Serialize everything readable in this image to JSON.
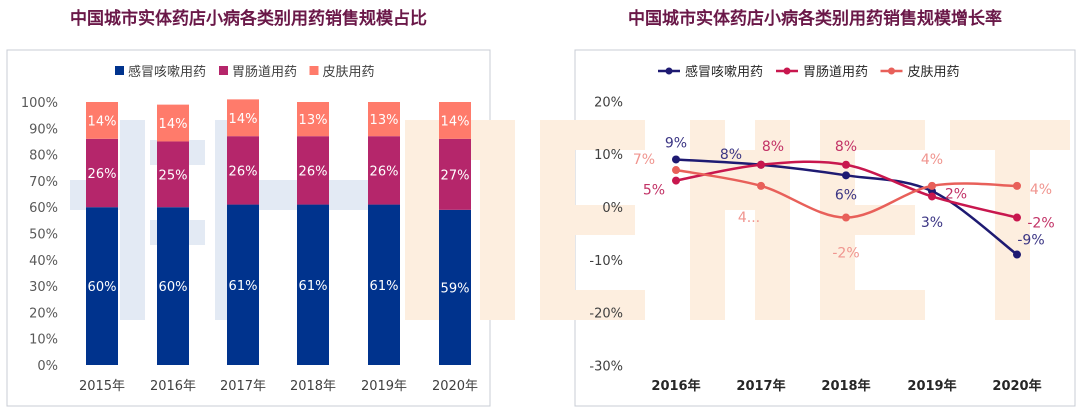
{
  "watermark": "米内MENET",
  "chart_data": [
    {
      "type": "bar",
      "stacked": true,
      "title": "中国城市实体药店小病各类别用药销售规模占比",
      "categories": [
        "2015年",
        "2016年",
        "2017年",
        "2018年",
        "2019年",
        "2020年"
      ],
      "series": [
        {
          "name": "感冒咳嗽用药",
          "color": "#00338d",
          "values": [
            60,
            60,
            61,
            61,
            61,
            59
          ]
        },
        {
          "name": "胃肠道用药",
          "color": "#b5266b",
          "values": [
            26,
            25,
            26,
            26,
            26,
            27
          ]
        },
        {
          "name": "皮肤用药",
          "color": "#ff7b6b",
          "values": [
            14,
            14,
            14,
            13,
            13,
            14
          ]
        }
      ],
      "yticks": [
        "0%",
        "10%",
        "20%",
        "30%",
        "40%",
        "50%",
        "60%",
        "70%",
        "80%",
        "90%",
        "100%"
      ],
      "ylim": [
        0,
        100
      ],
      "legend": "top",
      "grid": false
    },
    {
      "type": "line",
      "title": "中国城市实体药店小病各类别用药销售规模增长率",
      "categories": [
        "2016年",
        "2017年",
        "2018年",
        "2019年",
        "2020年"
      ],
      "series": [
        {
          "name": "感冒咳嗽用药",
          "color": "#1e1a72",
          "values": [
            9,
            8,
            6,
            3,
            -9
          ],
          "labels": [
            "9%",
            "8%",
            "6%",
            "3%",
            "-9%"
          ]
        },
        {
          "name": "胃肠道用药",
          "color": "#c8174e",
          "values": [
            5,
            8,
            8,
            2,
            -2
          ],
          "labels": [
            "5%",
            "8%",
            "8%",
            "2%",
            "-2%"
          ]
        },
        {
          "name": "皮肤用药",
          "color": "#e8605a",
          "values": [
            7,
            4,
            -2,
            4,
            4
          ],
          "labels": [
            "7%",
            "4...",
            "-2%",
            "4%",
            "4%"
          ]
        }
      ],
      "yticks": [
        "-30%",
        "-20%",
        "-10%",
        "0%",
        "10%",
        "20%"
      ],
      "ylim": [
        -30,
        20
      ],
      "legend": "top",
      "grid": false,
      "smooth": true
    }
  ]
}
